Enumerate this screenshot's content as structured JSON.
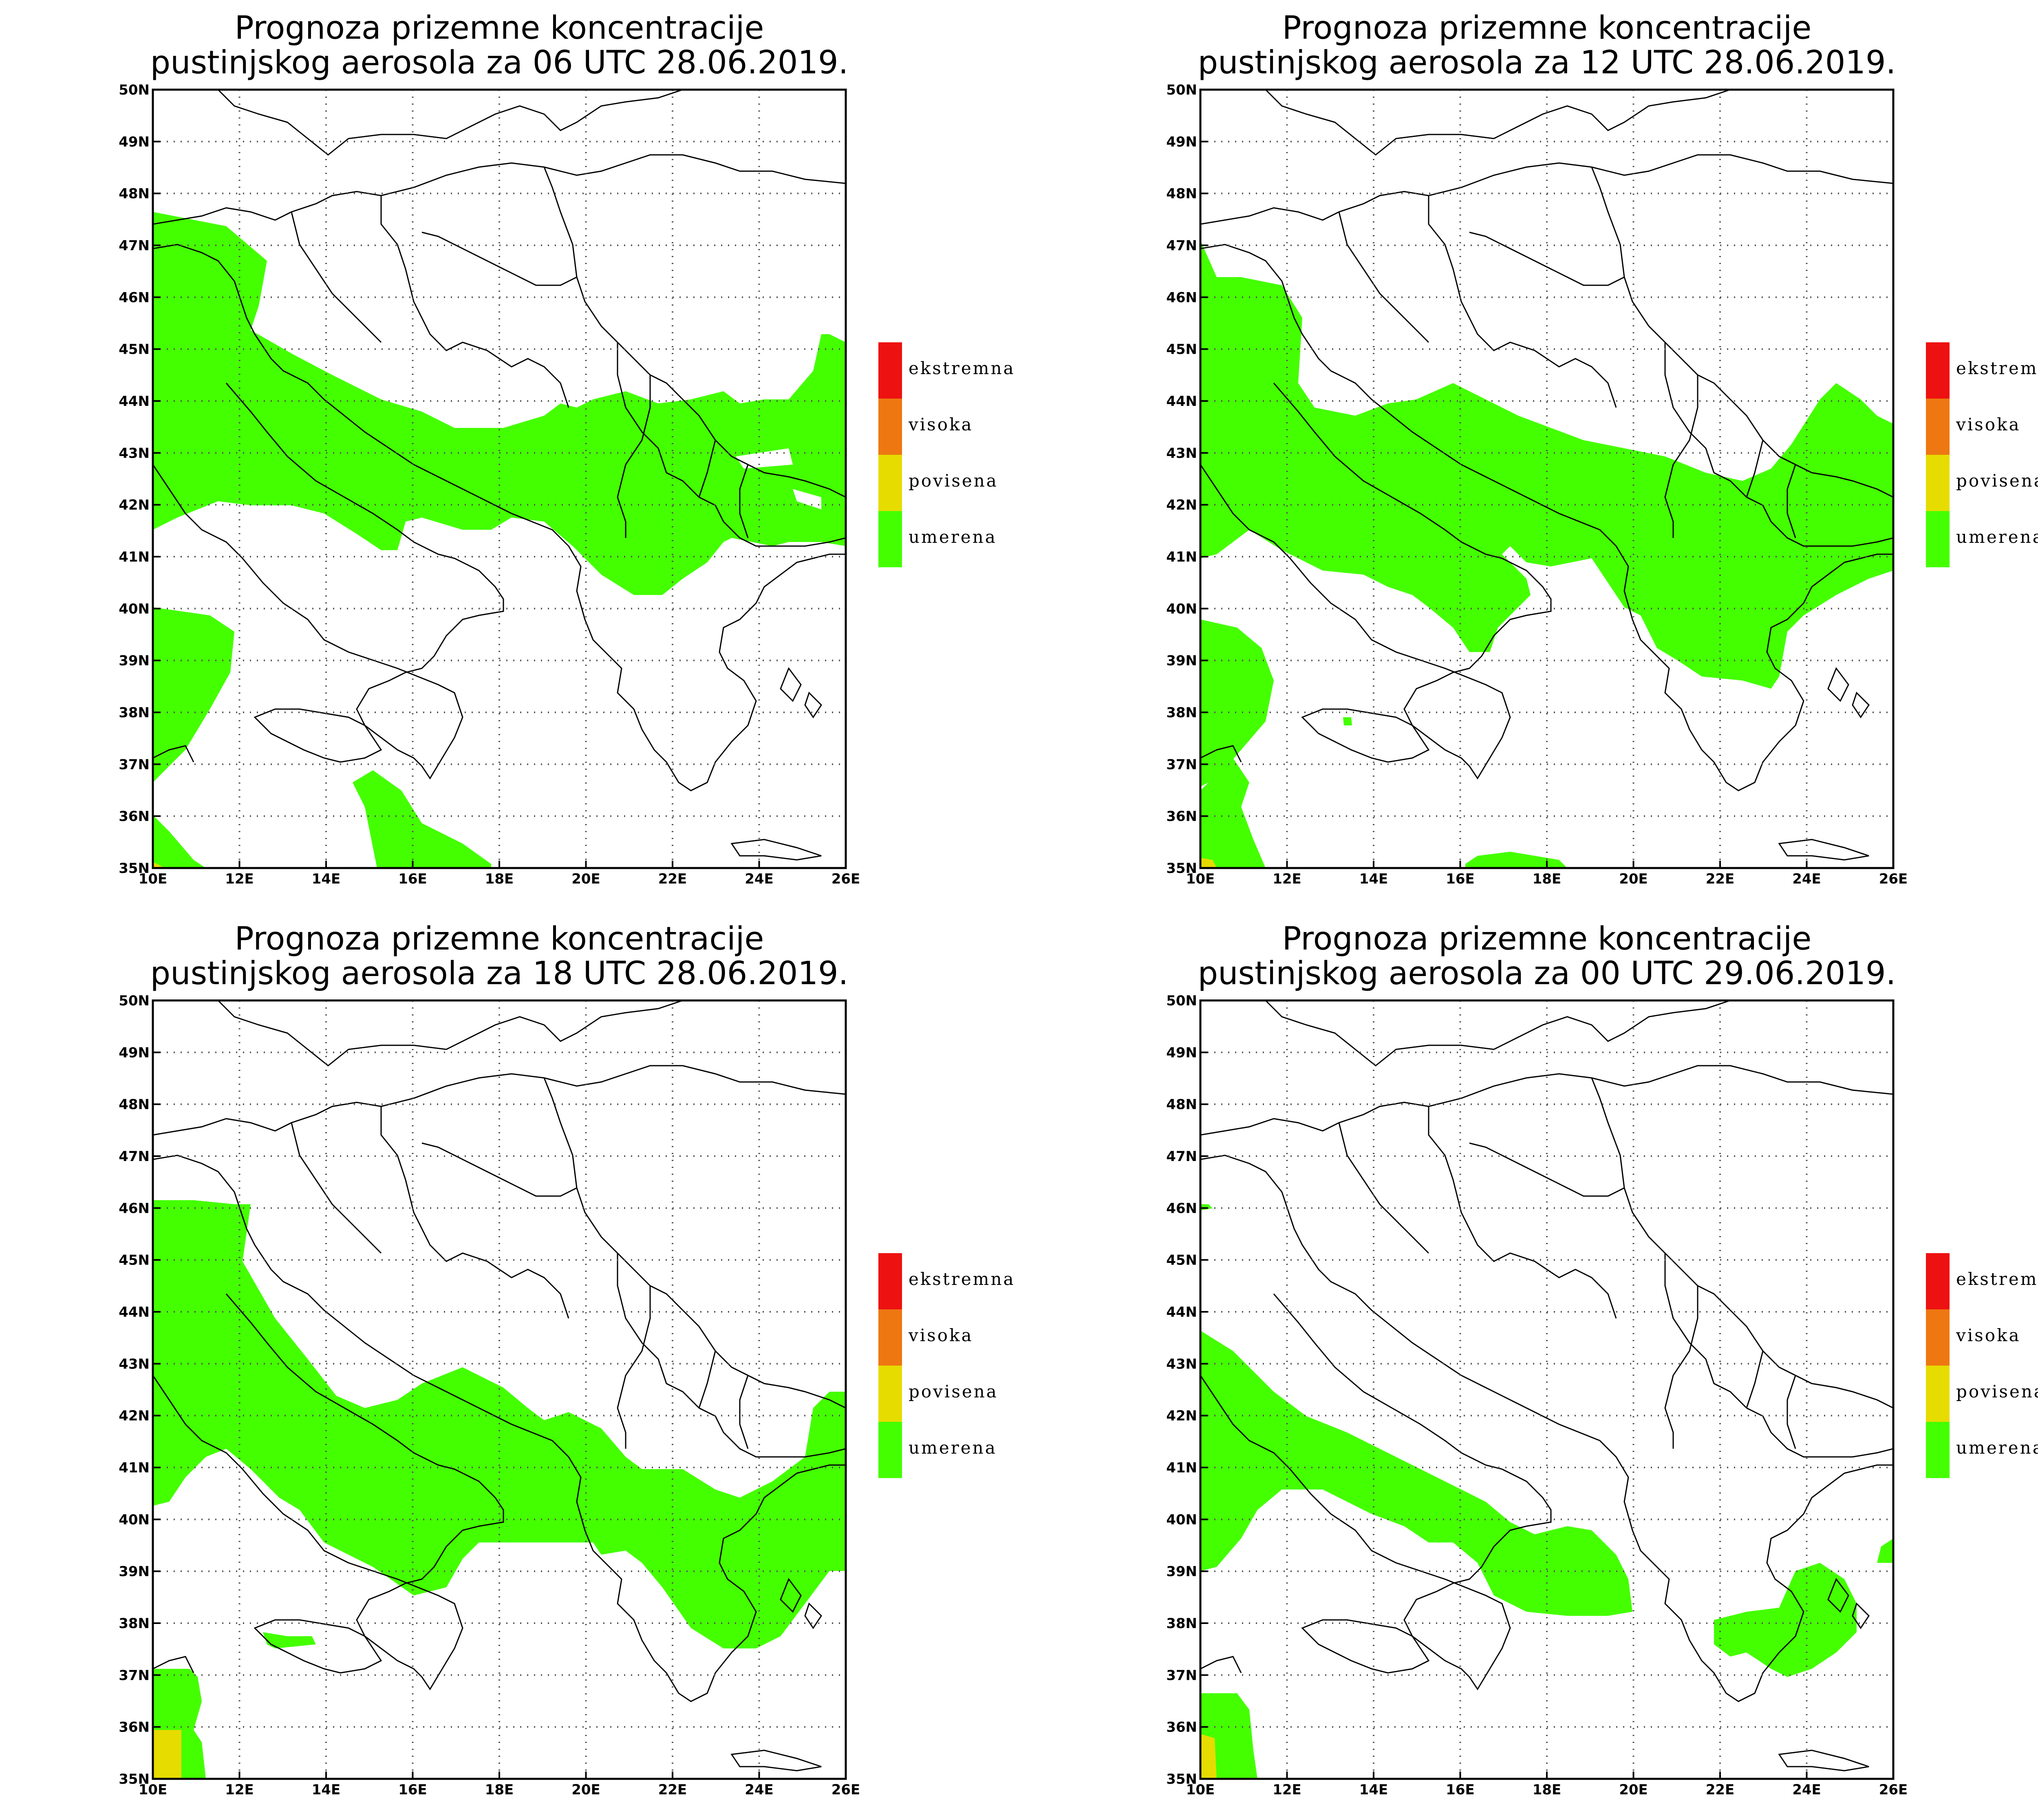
{
  "panels": [
    {
      "title_line1": "Prognoza prizemne koncentracije",
      "title_line2": "pustinjskog aerosola za 06 UTC 28.06.2019."
    },
    {
      "title_line1": "Prognoza prizemne koncentracije",
      "title_line2": "pustinjskog aerosola za 12 UTC 28.06.2019."
    },
    {
      "title_line1": "Prognoza prizemne koncentracije",
      "title_line2": "pustinjskog aerosola za 18 UTC 28.06.2019."
    },
    {
      "title_line1": "Prognoza prizemne koncentracije",
      "title_line2": "pustinjskog aerosola za 00 UTC 29.06.2019."
    }
  ],
  "axes": {
    "lon_labels": [
      "10E",
      "12E",
      "14E",
      "16E",
      "18E",
      "20E",
      "22E",
      "24E",
      "26E"
    ],
    "lat_labels": [
      "35N",
      "36N",
      "37N",
      "38N",
      "39N",
      "40N",
      "41N",
      "42N",
      "43N",
      "44N",
      "45N",
      "46N",
      "47N",
      "48N",
      "49N",
      "50N"
    ]
  },
  "legend": [
    {
      "label": "ekstremna",
      "color": "#ee1111"
    },
    {
      "label": "visoka",
      "color": "#ee7711"
    },
    {
      "label": "povisena",
      "color": "#e6dc00"
    },
    {
      "label": "umerena",
      "color": "#44ff00"
    }
  ],
  "colors": {
    "dust_moderate": "#44ff00",
    "dust_elevated": "#e6dc00",
    "grid": "#555555",
    "border": "#000000"
  }
}
